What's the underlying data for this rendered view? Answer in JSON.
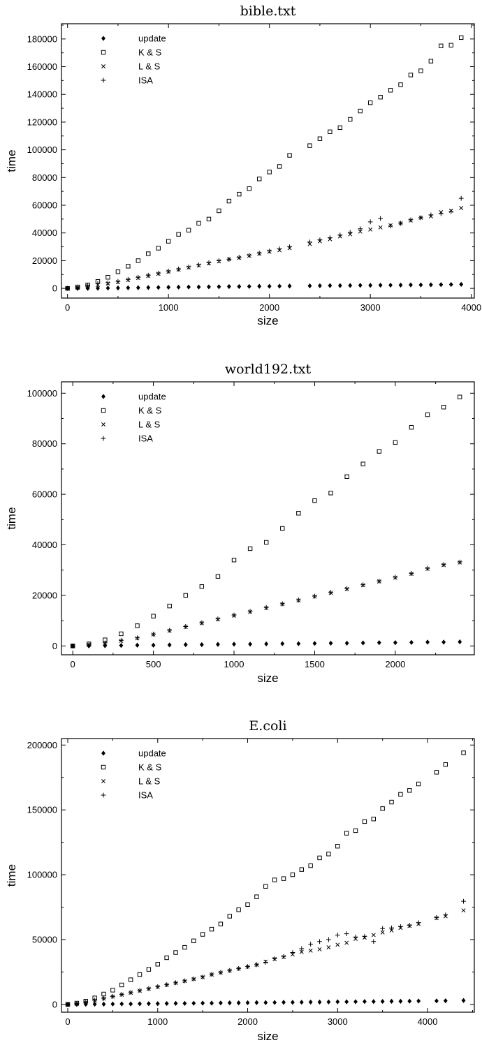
{
  "chart_data": [
    {
      "type": "scatter",
      "title": "bible.txt",
      "xlabel": "size",
      "ylabel": "time",
      "xlim": [
        -60,
        4030
      ],
      "ylim": [
        -7000,
        191000
      ],
      "xticks": [
        0,
        1000,
        2000,
        3000,
        4000
      ],
      "yticks": [
        0,
        20000,
        40000,
        60000,
        80000,
        100000,
        120000,
        140000,
        160000,
        180000
      ],
      "legend_position": "top-left",
      "series": [
        {
          "name": "update",
          "marker": "diamond",
          "x": [
            0,
            100,
            200,
            300,
            400,
            500,
            600,
            700,
            800,
            900,
            1000,
            1100,
            1200,
            1300,
            1400,
            1500,
            1600,
            1700,
            1800,
            1900,
            2000,
            2100,
            2200,
            2400,
            2500,
            2600,
            2700,
            2800,
            2900,
            3000,
            3100,
            3200,
            3300,
            3400,
            3500,
            3600,
            3700,
            3800,
            3900
          ],
          "y": [
            0,
            0,
            0,
            100,
            200,
            300,
            400,
            500,
            600,
            700,
            800,
            900,
            1000,
            1000,
            1100,
            1200,
            1300,
            1300,
            1400,
            1500,
            1500,
            1600,
            1700,
            1800,
            1900,
            2000,
            2000,
            2100,
            2200,
            2200,
            2300,
            2300,
            2400,
            2500,
            2500,
            2600,
            2700,
            2800,
            2900
          ]
        },
        {
          "name": "K & S",
          "marker": "square",
          "x": [
            0,
            100,
            200,
            300,
            400,
            500,
            600,
            700,
            800,
            900,
            1000,
            1100,
            1200,
            1300,
            1400,
            1500,
            1600,
            1700,
            1800,
            1900,
            2000,
            2100,
            2200,
            2400,
            2500,
            2600,
            2700,
            2800,
            2900,
            3000,
            3100,
            3200,
            3300,
            3400,
            3500,
            3600,
            3700,
            3800,
            3900
          ],
          "y": [
            0,
            1000,
            2500,
            5000,
            8000,
            12000,
            16000,
            20000,
            25000,
            29000,
            34000,
            39000,
            42000,
            47000,
            50000,
            56000,
            63000,
            68000,
            72000,
            79000,
            84000,
            88000,
            96000,
            103000,
            108000,
            113000,
            116000,
            122000,
            128000,
            134000,
            138000,
            143000,
            147000,
            154000,
            157000,
            164000,
            175000,
            175500,
            181000
          ]
        },
        {
          "name": "L & S",
          "marker": "cross",
          "x": [
            0,
            100,
            200,
            300,
            400,
            500,
            600,
            700,
            800,
            900,
            1000,
            1100,
            1200,
            1300,
            1400,
            1500,
            1600,
            1700,
            1800,
            1900,
            2000,
            2100,
            2200,
            2400,
            2500,
            2600,
            2700,
            2800,
            2900,
            3000,
            3100,
            3200,
            3300,
            3400,
            3500,
            3600,
            3700,
            3800,
            3900
          ],
          "y": [
            0,
            500,
            1500,
            2500,
            3500,
            4500,
            6000,
            7500,
            9000,
            10500,
            12000,
            13500,
            15000,
            16500,
            18000,
            19500,
            21000,
            22000,
            23500,
            25000,
            26500,
            27500,
            29000,
            32000,
            34000,
            35500,
            37500,
            39000,
            41000,
            42500,
            44000,
            45500,
            47000,
            49000,
            51000,
            52000,
            55000,
            56000,
            58000
          ]
        },
        {
          "name": "ISA",
          "marker": "plus",
          "x": [
            0,
            100,
            200,
            300,
            400,
            500,
            600,
            700,
            800,
            900,
            1000,
            1100,
            1200,
            1300,
            1400,
            1500,
            1600,
            1700,
            1800,
            1900,
            2000,
            2100,
            2200,
            2400,
            2500,
            2600,
            2700,
            2800,
            2900,
            3000,
            3100,
            3200,
            3300,
            3400,
            3500,
            3600,
            3700,
            3800,
            3900
          ],
          "y": [
            0,
            1000,
            2000,
            3500,
            4000,
            5000,
            6500,
            8000,
            9500,
            11000,
            12500,
            14000,
            15500,
            17000,
            18500,
            20000,
            21000,
            22500,
            24000,
            25500,
            27000,
            28500,
            30000,
            33500,
            35000,
            36500,
            38500,
            40500,
            43000,
            48000,
            50500,
            45000,
            47000,
            49500,
            51000,
            53000,
            54000,
            55500,
            65000
          ]
        }
      ]
    },
    {
      "type": "scatter",
      "title": "world192.txt",
      "xlabel": "size",
      "ylabel": "time",
      "xlim": [
        -70,
        2490
      ],
      "ylim": [
        -3500,
        104500
      ],
      "xticks": [
        0,
        500,
        1000,
        1500,
        2000
      ],
      "yticks": [
        0,
        20000,
        40000,
        60000,
        80000,
        100000
      ],
      "legend_position": "top-left",
      "series": [
        {
          "name": "update",
          "marker": "diamond",
          "x": [
            0,
            100,
            200,
            300,
            400,
            500,
            600,
            700,
            800,
            900,
            1000,
            1100,
            1200,
            1300,
            1400,
            1500,
            1600,
            1700,
            1800,
            1900,
            2000,
            2100,
            2200,
            2300,
            2400
          ],
          "y": [
            0,
            0,
            100,
            200,
            300,
            300,
            400,
            500,
            500,
            600,
            700,
            700,
            800,
            900,
            900,
            1000,
            1100,
            1100,
            1200,
            1300,
            1300,
            1400,
            1500,
            1500,
            1600
          ]
        },
        {
          "name": "K & S",
          "marker": "square",
          "x": [
            0,
            100,
            200,
            300,
            400,
            500,
            600,
            700,
            800,
            900,
            1000,
            1100,
            1200,
            1300,
            1400,
            1500,
            1600,
            1700,
            1800,
            1900,
            2000,
            2100,
            2200,
            2300,
            2400
          ],
          "y": [
            0,
            800,
            2400,
            4800,
            8000,
            11800,
            15800,
            20000,
            23500,
            27500,
            34000,
            38500,
            41000,
            46500,
            52500,
            57500,
            60500,
            67000,
            72000,
            77000,
            80500,
            86500,
            91500,
            94500,
            98500
          ]
        },
        {
          "name": "L & S",
          "marker": "cross",
          "x": [
            0,
            100,
            200,
            300,
            400,
            500,
            600,
            700,
            800,
            900,
            1000,
            1100,
            1200,
            1300,
            1400,
            1500,
            1600,
            1700,
            1800,
            1900,
            2000,
            2100,
            2200,
            2300,
            2400
          ],
          "y": [
            0,
            500,
            1000,
            2000,
            3000,
            4500,
            6000,
            7500,
            9000,
            10500,
            12000,
            13500,
            15000,
            16500,
            18000,
            19500,
            21000,
            22500,
            24000,
            25500,
            27000,
            28500,
            30500,
            32000,
            33000
          ]
        },
        {
          "name": "ISA",
          "marker": "plus",
          "x": [
            0,
            100,
            200,
            300,
            400,
            500,
            600,
            700,
            800,
            900,
            1000,
            1100,
            1200,
            1300,
            1400,
            1500,
            1600,
            1700,
            1800,
            1900,
            2000,
            2100,
            2200,
            2300,
            2400
          ],
          "y": [
            0,
            600,
            1200,
            2200,
            3200,
            4700,
            6200,
            7700,
            9200,
            10700,
            12200,
            13700,
            15200,
            16700,
            18200,
            19700,
            21200,
            22700,
            24200,
            25700,
            27200,
            28700,
            30700,
            32200,
            33200
          ]
        }
      ]
    },
    {
      "type": "scatter",
      "title": "E.coli",
      "xlabel": "size",
      "ylabel": "time",
      "xlim": [
        -70,
        4520
      ],
      "ylim": [
        -6000,
        205000
      ],
      "xticks": [
        0,
        1000,
        2000,
        3000,
        4000
      ],
      "yticks": [
        0,
        50000,
        100000,
        150000,
        200000
      ],
      "legend_position": "top-left",
      "series": [
        {
          "name": "update",
          "marker": "diamond",
          "x": [
            0,
            100,
            200,
            300,
            400,
            500,
            600,
            700,
            800,
            900,
            1000,
            1100,
            1200,
            1300,
            1400,
            1500,
            1600,
            1700,
            1800,
            1900,
            2000,
            2100,
            2200,
            2300,
            2400,
            2500,
            2600,
            2700,
            2800,
            2900,
            3000,
            3100,
            3200,
            3300,
            3400,
            3500,
            3600,
            3700,
            3800,
            3900,
            4100,
            4200,
            4400
          ],
          "y": [
            0,
            0,
            100,
            200,
            200,
            300,
            400,
            400,
            500,
            600,
            600,
            700,
            800,
            800,
            900,
            1000,
            1000,
            1100,
            1200,
            1200,
            1300,
            1400,
            1400,
            1500,
            1600,
            1600,
            1700,
            1800,
            1800,
            1900,
            2000,
            2000,
            2100,
            2200,
            2200,
            2300,
            2400,
            2400,
            2500,
            2600,
            2700,
            2800,
            3000
          ]
        },
        {
          "name": "K & S",
          "marker": "square",
          "x": [
            0,
            100,
            200,
            300,
            400,
            500,
            600,
            700,
            800,
            900,
            1000,
            1100,
            1200,
            1300,
            1400,
            1500,
            1600,
            1700,
            1800,
            1900,
            2000,
            2100,
            2200,
            2300,
            2400,
            2500,
            2600,
            2700,
            2800,
            2900,
            3000,
            3100,
            3200,
            3300,
            3400,
            3500,
            3600,
            3700,
            3800,
            3900,
            4100,
            4200,
            4400
          ],
          "y": [
            0,
            1000,
            2500,
            5000,
            8000,
            11000,
            15000,
            19000,
            23000,
            27000,
            31000,
            36000,
            40000,
            44000,
            49000,
            54000,
            58000,
            62000,
            68000,
            73000,
            77000,
            83000,
            91000,
            96000,
            97000,
            100000,
            104000,
            107000,
            113000,
            116000,
            122000,
            132000,
            134000,
            141000,
            143000,
            151000,
            156000,
            162000,
            165000,
            170000,
            179000,
            185000,
            194000
          ]
        },
        {
          "name": "L & S",
          "marker": "cross",
          "x": [
            0,
            100,
            200,
            300,
            400,
            500,
            600,
            700,
            800,
            900,
            1000,
            1100,
            1200,
            1300,
            1400,
            1500,
            1600,
            1700,
            1800,
            1900,
            2000,
            2100,
            2200,
            2300,
            2400,
            2500,
            2600,
            2700,
            2800,
            2900,
            3000,
            3100,
            3200,
            3300,
            3400,
            3500,
            3600,
            3700,
            3800,
            3900,
            4100,
            4200,
            4400
          ],
          "y": [
            0,
            500,
            1500,
            3000,
            4500,
            6000,
            7500,
            9000,
            10500,
            12000,
            13500,
            15000,
            16500,
            18000,
            19500,
            21000,
            23000,
            24500,
            26000,
            27500,
            29000,
            30500,
            33000,
            35000,
            36500,
            38500,
            40500,
            41500,
            42500,
            44000,
            46000,
            47500,
            50500,
            51500,
            53500,
            55500,
            57000,
            59000,
            60500,
            62000,
            66500,
            68000,
            72500
          ]
        },
        {
          "name": "ISA",
          "marker": "plus",
          "x": [
            0,
            100,
            200,
            300,
            400,
            500,
            600,
            700,
            800,
            900,
            1000,
            1100,
            1200,
            1300,
            1400,
            1500,
            1600,
            1700,
            1800,
            1900,
            2000,
            2100,
            2200,
            2300,
            2400,
            2500,
            2600,
            2700,
            2800,
            2900,
            3000,
            3100,
            3200,
            3300,
            3400,
            3500,
            3600,
            3700,
            3800,
            3900,
            4100,
            4200,
            4400
          ],
          "y": [
            0,
            700,
            1700,
            3200,
            4700,
            6200,
            7700,
            9200,
            10700,
            12200,
            13700,
            15200,
            16700,
            18200,
            19700,
            21200,
            23200,
            24700,
            26200,
            27700,
            29200,
            30700,
            32500,
            35200,
            37000,
            40000,
            43000,
            46500,
            48500,
            50000,
            53500,
            54500,
            52000,
            52500,
            48500,
            58500,
            59000,
            60000,
            61000,
            63000,
            67000,
            69000,
            79500
          ]
        }
      ]
    }
  ]
}
